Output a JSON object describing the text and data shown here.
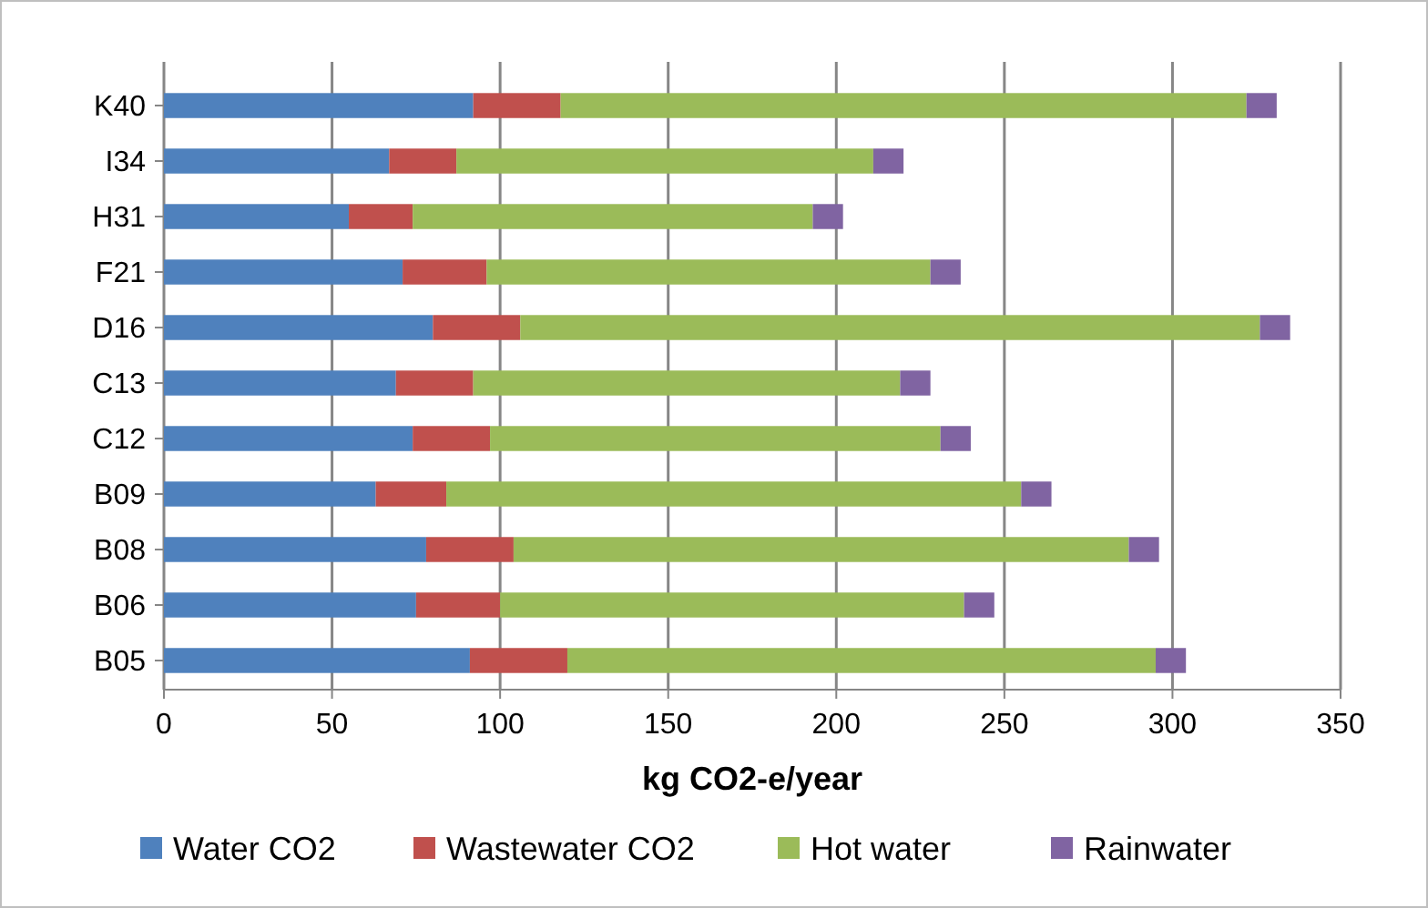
{
  "chart_data": {
    "type": "bar",
    "orientation": "horizontal",
    "stacked": true,
    "categories": [
      "K40",
      "I34",
      "H31",
      "F21",
      "D16",
      "C13",
      "C12",
      "B09",
      "B08",
      "B06",
      "B05"
    ],
    "series": [
      {
        "name": "Water CO2",
        "color": "#4f81bd",
        "values": [
          92,
          67,
          55,
          71,
          80,
          69,
          74,
          63,
          78,
          75,
          91
        ]
      },
      {
        "name": "Wastewater CO2",
        "color": "#c0504d",
        "values": [
          26,
          20,
          19,
          25,
          26,
          23,
          23,
          21,
          26,
          25,
          29
        ]
      },
      {
        "name": "Hot water",
        "color": "#9bbb59",
        "values": [
          204,
          124,
          119,
          132,
          220,
          127,
          134,
          171,
          183,
          138,
          175
        ]
      },
      {
        "name": "Rainwater",
        "color": "#8064a2",
        "values": [
          9,
          9,
          9,
          9,
          9,
          9,
          9,
          9,
          9,
          9,
          9
        ]
      }
    ],
    "xlabel": "kg CO2-e/year",
    "xlim": [
      0,
      350
    ],
    "xticks": [
      0,
      50,
      100,
      150,
      200,
      250,
      300,
      350
    ],
    "grid": "x",
    "legend": "bottom"
  }
}
